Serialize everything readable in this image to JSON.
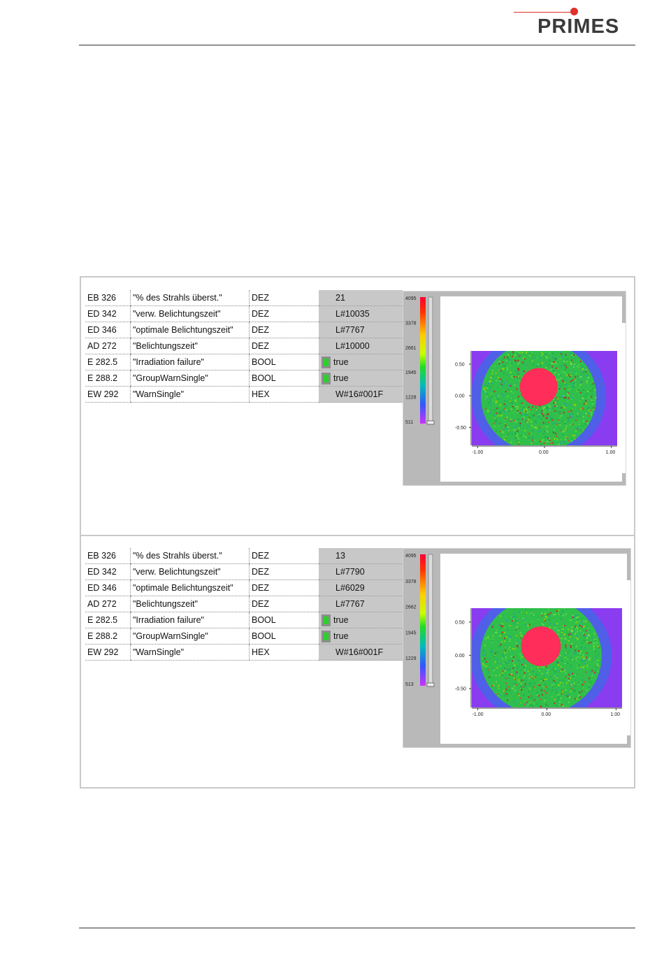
{
  "header": {
    "logo_text": "PRIMES",
    "brand_color": "#e0312a"
  },
  "panels": [
    {
      "rows": [
        {
          "addr": "EB   326",
          "symbol": "\"% des Strahls überst.\"",
          "format": "DEZ",
          "value": "21",
          "bool": false
        },
        {
          "addr": "ED   342",
          "symbol": "\"verw. Belichtungszeit\"",
          "format": "DEZ",
          "value": "L#10035",
          "bool": false
        },
        {
          "addr": "ED   346",
          "symbol": "\"optimale Belichtungszeit\"",
          "format": "DEZ",
          "value": "L#7767",
          "bool": false
        },
        {
          "addr": "AD   272",
          "symbol": "\"Belichtungszeit\"",
          "format": "DEZ",
          "value": "L#10000",
          "bool": false
        },
        {
          "addr": "E    282.5",
          "symbol": "\"Irradiation failure\"",
          "format": "BOOL",
          "value": "true",
          "bool": true
        },
        {
          "addr": "E    288.2",
          "symbol": "\"GroupWarnSingle\"",
          "format": "BOOL",
          "value": "true",
          "bool": true
        },
        {
          "addr": "EW   292",
          "symbol": "\"WarnSingle\"",
          "format": "HEX",
          "value": "W#16#001F",
          "bool": false
        }
      ],
      "scale_labels": [
        "4095",
        "3378",
        "2661",
        "1945",
        "1228",
        "511"
      ],
      "y_ticks": [
        "0.50",
        "0.00",
        "-0.50"
      ],
      "x_ticks": [
        "-1.00",
        "0.00",
        "1.00"
      ]
    },
    {
      "rows": [
        {
          "addr": "EB   326",
          "symbol": "\"% des Strahls überst.\"",
          "format": "DEZ",
          "value": "13",
          "bool": false
        },
        {
          "addr": "ED   342",
          "symbol": "\"verw. Belichtungszeit\"",
          "format": "DEZ",
          "value": "L#7790",
          "bool": false
        },
        {
          "addr": "ED   346",
          "symbol": "\"optimale Belichtungszeit\"",
          "format": "DEZ",
          "value": "L#6029",
          "bool": false
        },
        {
          "addr": "AD   272",
          "symbol": "\"Belichtungszeit\"",
          "format": "DEZ",
          "value": "L#7767",
          "bool": false
        },
        {
          "addr": "E    282.5",
          "symbol": "\"Irradiation failure\"",
          "format": "BOOL",
          "value": "true",
          "bool": true
        },
        {
          "addr": "E    288.2",
          "symbol": "\"GroupWarnSingle\"",
          "format": "BOOL",
          "value": "true",
          "bool": true
        },
        {
          "addr": "EW   292",
          "symbol": "\"WarnSingle\"",
          "format": "HEX",
          "value": "W#16#001F",
          "bool": false
        }
      ],
      "scale_labels": [
        "4095",
        "3378",
        "2662",
        "1945",
        "1229",
        "513"
      ],
      "y_ticks": [
        "0.50",
        "0.00",
        "-0.50"
      ],
      "x_ticks": [
        "-1.00",
        "0.00",
        "1.00"
      ]
    }
  ]
}
